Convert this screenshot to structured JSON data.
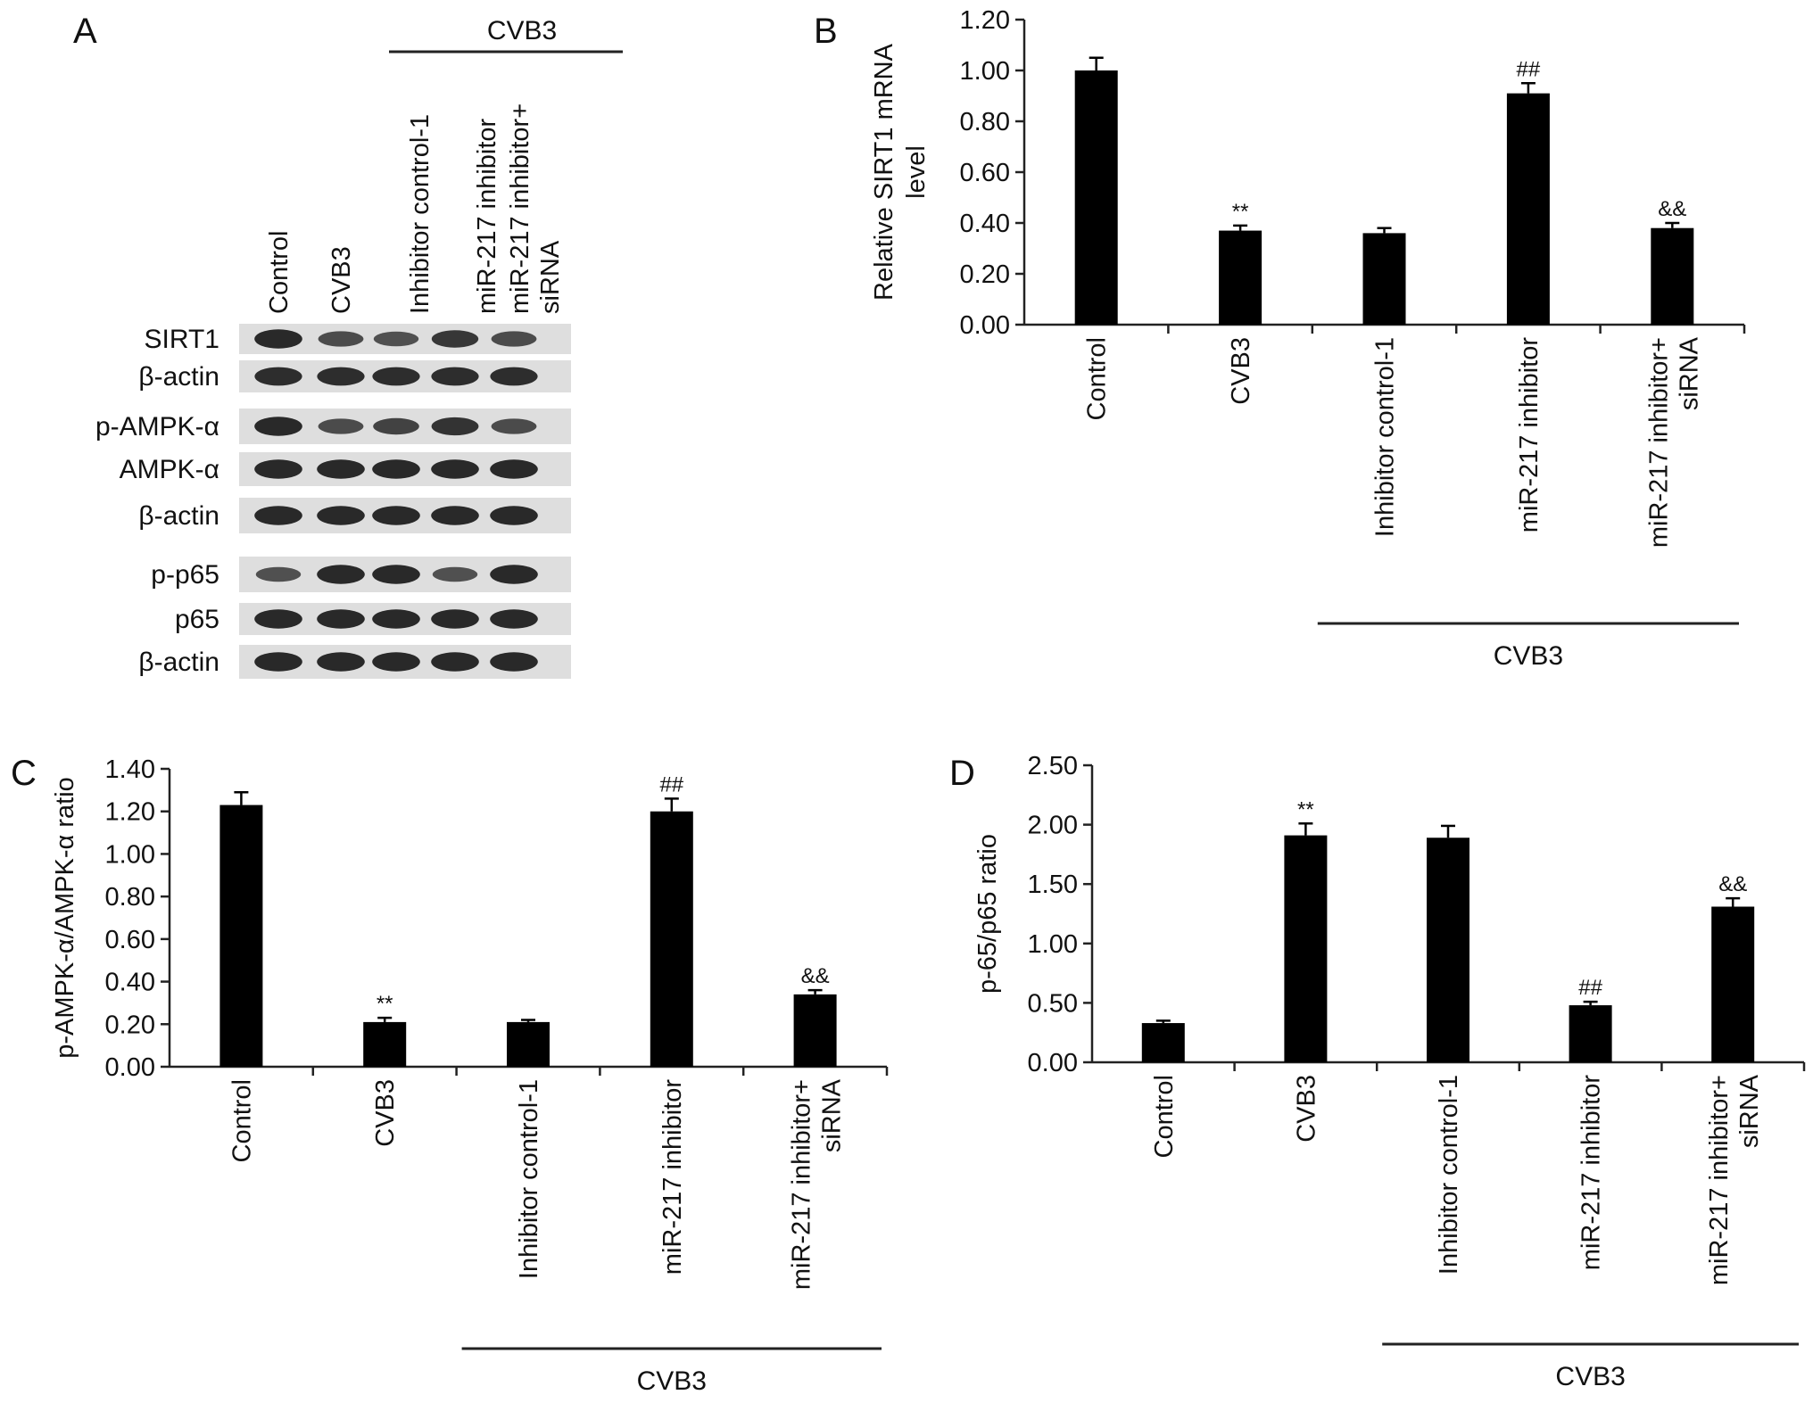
{
  "figure": {
    "panel_letters": [
      "A",
      "B",
      "C",
      "D"
    ],
    "colors": {
      "bar": "#000000",
      "axis": "#222222",
      "background": "#ffffff",
      "blot_bg": "#dedede",
      "band": "#1a1a1a"
    }
  },
  "blot": {
    "group_label": "CVB3",
    "lane_labels": [
      "Control",
      "CVB3",
      "Inhibitor control-1",
      "miR-217 inhibitor",
      "miR-217 inhibitor+ siRNA"
    ],
    "row_labels": [
      "SIRT1",
      "β-actin",
      "p-AMPK-α",
      "AMPK-α",
      "β-actin",
      "p-p65",
      "p65",
      "β-actin"
    ],
    "band_intensity": [
      [
        0.95,
        0.6,
        0.55,
        0.8,
        0.6
      ],
      [
        0.9,
        0.9,
        0.9,
        0.9,
        0.9
      ],
      [
        0.95,
        0.6,
        0.7,
        0.85,
        0.6
      ],
      [
        0.95,
        0.95,
        0.95,
        0.95,
        0.95
      ],
      [
        0.95,
        0.95,
        0.95,
        0.95,
        0.95
      ],
      [
        0.55,
        0.95,
        0.95,
        0.55,
        0.95
      ],
      [
        0.95,
        0.95,
        0.95,
        0.95,
        0.95
      ],
      [
        0.95,
        0.95,
        0.95,
        0.95,
        0.95
      ]
    ]
  },
  "chart_data": [
    {
      "panel": "B",
      "type": "bar",
      "categories": [
        "Control",
        "CVB3",
        "Inhibitor control-1",
        "miR-217 inhibitor",
        "miR-217 inhibitor+ siRNA"
      ],
      "values": [
        1.0,
        0.37,
        0.36,
        0.91,
        0.38
      ],
      "errors": [
        0.05,
        0.02,
        0.02,
        0.04,
        0.02
      ],
      "annotations": [
        "",
        "**",
        "",
        "##",
        "&&"
      ],
      "ylabel_lines": [
        "Relative SIRT1 mRNA",
        "level"
      ],
      "yticks": [
        "0.00",
        "0.20",
        "0.40",
        "0.60",
        "0.80",
        "1.00",
        "1.20"
      ],
      "ylim": [
        0,
        1.2
      ],
      "group_label": "CVB3"
    },
    {
      "panel": "C",
      "type": "bar",
      "categories": [
        "Control",
        "CVB3",
        "Inhibitor control-1",
        "miR-217 inhibitor",
        "miR-217 inhibitor+ siRNA"
      ],
      "values": [
        1.23,
        0.21,
        0.21,
        1.2,
        0.34
      ],
      "errors": [
        0.06,
        0.02,
        0.01,
        0.06,
        0.02
      ],
      "annotations": [
        "",
        "**",
        "",
        "##",
        "&&"
      ],
      "ylabel_lines": [
        "p-AMPK-α/AMPK-α ratio"
      ],
      "yticks": [
        "0.00",
        "0.20",
        "0.40",
        "0.60",
        "0.80",
        "1.00",
        "1.20",
        "1.40"
      ],
      "ylim": [
        0,
        1.4
      ],
      "group_label": "CVB3"
    },
    {
      "panel": "D",
      "type": "bar",
      "categories": [
        "Control",
        "CVB3",
        "Inhibitor control-1",
        "miR-217 inhibitor",
        "miR-217 inhibitor+ siRNA"
      ],
      "values": [
        0.33,
        1.91,
        1.89,
        0.48,
        1.31
      ],
      "errors": [
        0.02,
        0.1,
        0.1,
        0.03,
        0.07
      ],
      "annotations": [
        "",
        "**",
        "",
        "##",
        "&&"
      ],
      "ylabel_lines": [
        "p-65/p65 ratio"
      ],
      "yticks": [
        "0.00",
        "0.50",
        "1.00",
        "1.50",
        "2.00",
        "2.50"
      ],
      "ylim": [
        0,
        2.5
      ],
      "group_label": "CVB3"
    }
  ]
}
